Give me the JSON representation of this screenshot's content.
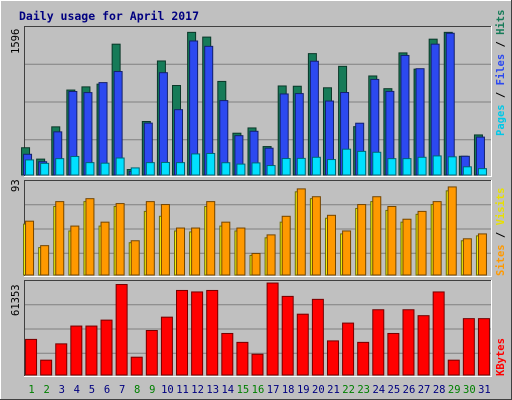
{
  "chart_data": {
    "type": "bar",
    "title": "Daily usage for April 2017",
    "categories": [
      "1",
      "2",
      "3",
      "4",
      "5",
      "6",
      "7",
      "8",
      "9",
      "10",
      "11",
      "12",
      "13",
      "14",
      "15",
      "16",
      "17",
      "18",
      "19",
      "20",
      "21",
      "22",
      "23",
      "24",
      "25",
      "26",
      "27",
      "28",
      "29",
      "30",
      "31"
    ],
    "weekend_days": [
      "1",
      "2",
      "8",
      "9",
      "15",
      "16",
      "22",
      "23",
      "29",
      "30"
    ],
    "panels": [
      {
        "id": "hits",
        "max_label": "1596",
        "ymax": 1596,
        "series": [
          {
            "name": "Pages",
            "color": "#00e0ff",
            "values": [
              166,
              128,
              180,
              204,
              136,
              130,
              187,
              78,
              136,
              138,
              136,
              232,
              237,
              135,
              120,
              133,
              104,
              181,
              183,
              195,
              170,
              284,
              260,
              250,
              180,
              180,
              195,
              210,
              200,
              90,
              70
            ]
          },
          {
            "name": "Files",
            "color": "#2c49f0",
            "values": [
              228,
              146,
              475,
              919,
              907,
              1017,
              1139,
              40,
              571,
              1126,
              719,
              1475,
              1416,
              819,
              433,
              481,
              295,
              892,
              896,
              1252,
              814,
              908,
              570,
              1052,
              920,
              1316,
              1170,
              1440,
              1560,
              206,
              417
            ]
          },
          {
            "name": "Hits",
            "color": "#167b58",
            "values": [
              300,
              175,
              530,
              935,
              970,
              1000,
              1440,
              60,
              589,
              1255,
              985,
              1570,
              1518,
              1030,
              460,
              518,
              313,
              980,
              977,
              1336,
              960,
              1196,
              532,
              1090,
              950,
              1344,
              1165,
              1495,
              1570,
              206,
              441
            ]
          }
        ]
      },
      {
        "id": "visits",
        "max_label": "93",
        "ymax": 93,
        "series": [
          {
            "name": "Sites",
            "color": "#ff9900",
            "values": [
              55,
              30,
              75,
              50,
              78,
              54,
              73,
              35,
              75,
              72,
              48,
              48,
              75,
              54,
              48,
              22,
              41,
              60,
              88,
              80,
              61,
              45,
              72,
              80,
              70,
              57,
              65,
              75,
              90,
              37,
              42
            ]
          },
          {
            "name": "Visits",
            "color": "#f3f20a",
            "values": [
              52,
              28,
              70,
              45,
              75,
              50,
              70,
              33,
              65,
              60,
              45,
              44,
              70,
              50,
              45,
              20,
              38,
              54,
              85,
              78,
              58,
              42,
              68,
              75,
              66,
              54,
              62,
              72,
              86,
              35,
              40
            ]
          }
        ]
      },
      {
        "id": "kbytes",
        "max_label": "61353",
        "ymax": 61353,
        "series": [
          {
            "name": "KBytes",
            "color": "#ff0000",
            "values": [
              24000,
              10000,
              21000,
              33000,
              33000,
              37000,
              61000,
              12000,
              30000,
              39000,
              57000,
              56000,
              57000,
              28000,
              22000,
              14000,
              62000,
              53000,
              41000,
              51000,
              23000,
              35000,
              22000,
              44000,
              28000,
              44000,
              40000,
              56000,
              10000,
              38000,
              38000
            ]
          }
        ]
      }
    ],
    "legend_placement": "right",
    "grid": true
  },
  "colors": {
    "background": "#c0c0c0",
    "weekday_label": "#000080",
    "weekend_label": "#008000",
    "grid": "#808080"
  }
}
